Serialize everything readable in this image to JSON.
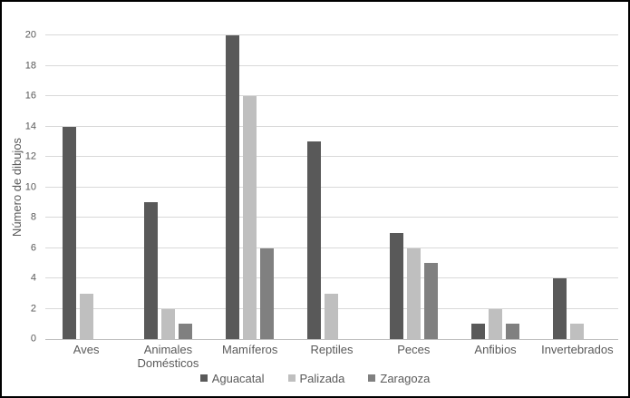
{
  "chart_data": {
    "type": "bar",
    "title": "",
    "xlabel": "",
    "ylabel": "Número de dibujos",
    "ylim": [
      0,
      20
    ],
    "ytick_step": 2,
    "grid": true,
    "legend_position": "bottom",
    "categories": [
      "Aves",
      "Animales Domésticos",
      "Mamíferos",
      "Reptiles",
      "Peces",
      "Anfibios",
      "Invertebrados"
    ],
    "series": [
      {
        "name": "Aguacatal",
        "color": "#595959",
        "values": [
          14,
          9,
          20,
          13,
          7,
          1,
          4
        ]
      },
      {
        "name": "Palizada",
        "color": "#bfbfbf",
        "values": [
          3,
          2,
          16,
          3,
          6,
          2,
          1
        ]
      },
      {
        "name": "Zaragoza",
        "color": "#808080",
        "values": [
          0,
          1,
          6,
          0,
          5,
          1,
          0
        ]
      }
    ]
  },
  "colors": {
    "text": "#595959",
    "gridline": "#d9d9d9",
    "axis_line": "#bfbfbf",
    "frame_border": "#000000",
    "background": "#ffffff"
  }
}
